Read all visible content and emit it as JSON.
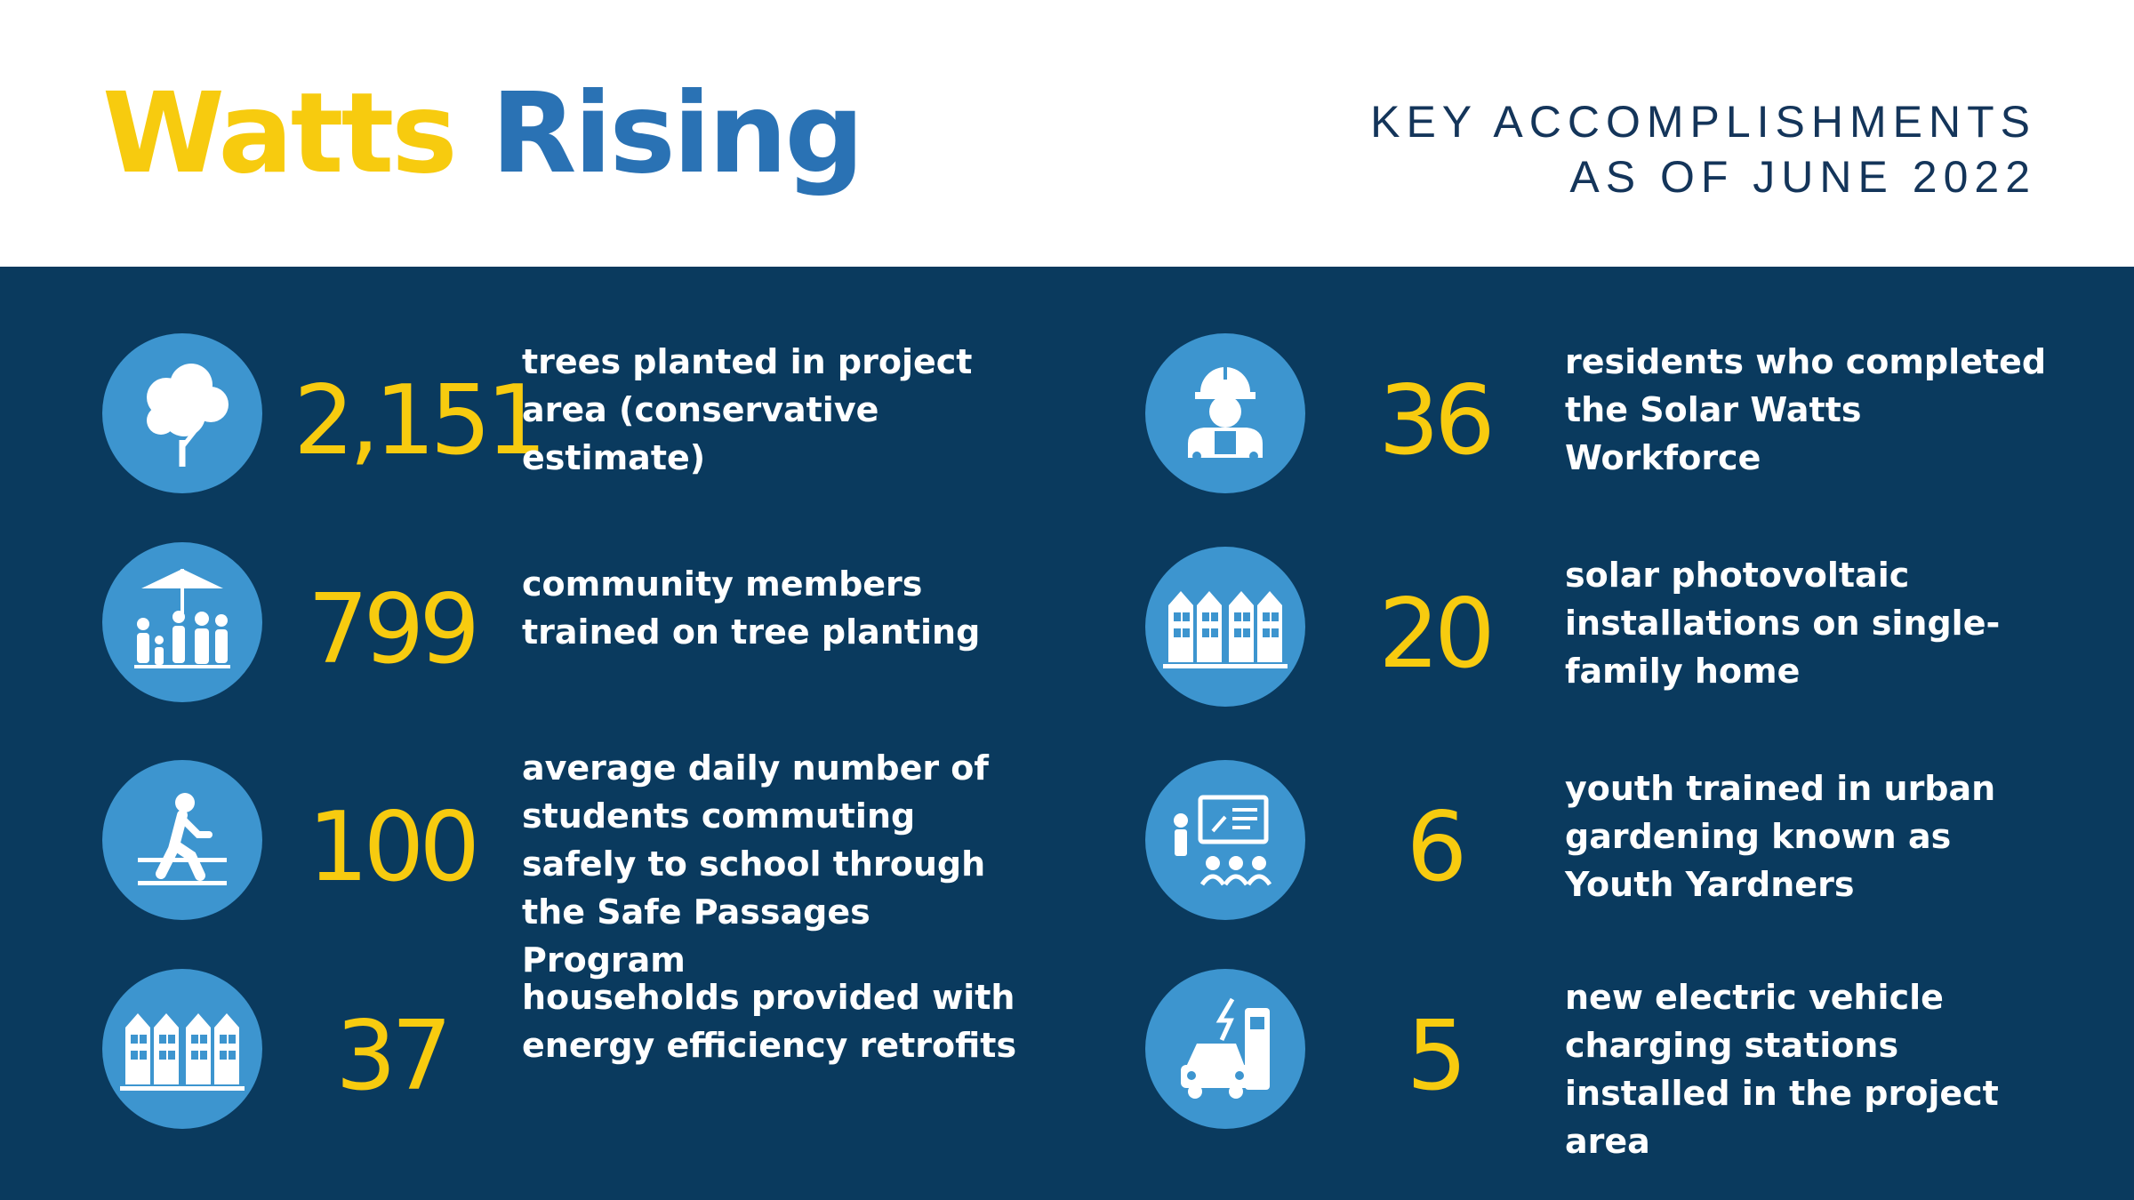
{
  "header": {
    "title_part1": "Watts",
    "title_part2": "Rising",
    "subtitle_line1": "KEY ACCOMPLISHMENTS",
    "subtitle_line2": "AS OF JUNE 2022"
  },
  "colors": {
    "accent_yellow": "#f7cb0f",
    "accent_blue": "#2a72b4",
    "panel_navy": "#0a3a5e",
    "icon_circle_blue": "#3d95cf"
  },
  "left_items": [
    {
      "icon": "tree-icon",
      "number": "2,151",
      "text": "trees planted in project area (conservative estimate)"
    },
    {
      "icon": "community-market-icon",
      "number": "799",
      "text": "community members trained on tree planting"
    },
    {
      "icon": "pedestrian-crossing-icon",
      "number": "100",
      "text": "average daily number of students commuting safely to school through the Safe Passages Program"
    },
    {
      "icon": "row-houses-icon",
      "number": "37",
      "text": "households provided with energy efficiency retrofits"
    }
  ],
  "right_items": [
    {
      "icon": "construction-worker-icon",
      "number": "36",
      "text": "residents who completed the Solar Watts Workforce"
    },
    {
      "icon": "row-houses-icon",
      "number": "20",
      "text": "solar photovoltaic installations on single-family home"
    },
    {
      "icon": "classroom-presentation-icon",
      "number": "6",
      "text": "youth trained in urban gardening known as Youth Yardners"
    },
    {
      "icon": "ev-charging-icon",
      "number": "5",
      "text": "new electric vehicle charging stations installed in the project area"
    }
  ]
}
